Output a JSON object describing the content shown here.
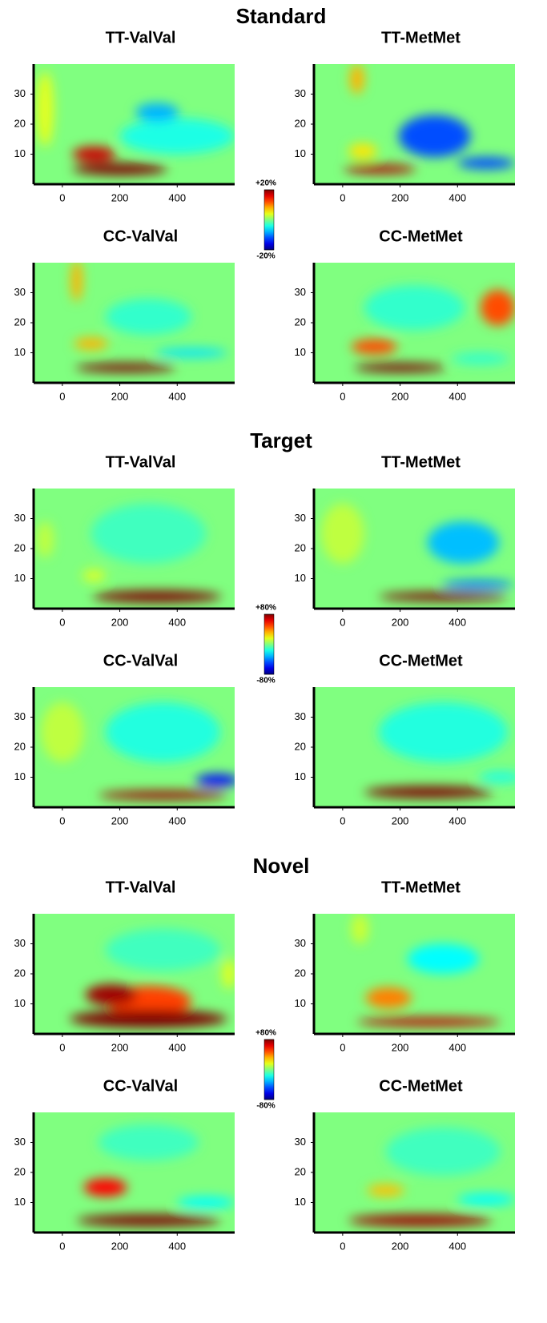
{
  "figure": {
    "xlim": [
      -100,
      600
    ],
    "ylim": [
      0,
      40
    ],
    "xticks": [
      0,
      200,
      400
    ],
    "yticks": [
      10,
      20,
      30
    ]
  },
  "sections": [
    {
      "title": "Standard",
      "clim": [
        -20,
        20
      ],
      "cticks": [
        {
          "value": 20,
          "label": "+20%"
        },
        {
          "value": -20,
          "label": "-20%"
        }
      ],
      "panels": [
        {
          "type": "heatmap",
          "title": "TT-ValVal",
          "features": [
            {
              "x": 400,
              "y": 16,
              "xspan": 400,
              "yspan": 12,
              "value": -4
            },
            {
              "x": -60,
              "y": 25,
              "xspan": 60,
              "yspan": 25,
              "value": 4
            },
            {
              "x": 330,
              "y": 24,
              "xspan": 150,
              "yspan": 6,
              "value": -8
            },
            {
              "x": 110,
              "y": 10,
              "xspan": 150,
              "yspan": 5,
              "value": 17
            },
            {
              "x": 200,
              "y": 5,
              "xspan": 330,
              "yspan": 4,
              "value": 20
            }
          ]
        },
        {
          "type": "heatmap",
          "title": "TT-MetMet",
          "features": [
            {
              "x": 320,
              "y": 16,
              "xspan": 250,
              "yspan": 14,
              "value": -12
            },
            {
              "x": 500,
              "y": 7,
              "xspan": 200,
              "yspan": 4,
              "value": -12
            },
            {
              "x": 50,
              "y": 35,
              "xspan": 50,
              "yspan": 10,
              "value": 8
            },
            {
              "x": 70,
              "y": 11,
              "xspan": 100,
              "yspan": 5,
              "value": 6
            },
            {
              "x": 130,
              "y": 5,
              "xspan": 250,
              "yspan": 3,
              "value": 18
            }
          ]
        },
        {
          "type": "heatmap",
          "title": "CC-ValVal",
          "features": [
            {
              "x": 300,
              "y": 22,
              "xspan": 300,
              "yspan": 12,
              "value": -3
            },
            {
              "x": 450,
              "y": 10,
              "xspan": 250,
              "yspan": 3,
              "value": -6
            },
            {
              "x": 50,
              "y": 34,
              "xspan": 40,
              "yspan": 14,
              "value": 8
            },
            {
              "x": 100,
              "y": 13,
              "xspan": 120,
              "yspan": 4,
              "value": 8
            },
            {
              "x": 220,
              "y": 5,
              "xspan": 350,
              "yspan": 3,
              "value": 20
            }
          ]
        },
        {
          "type": "heatmap",
          "title": "CC-MetMet",
          "features": [
            {
              "x": 250,
              "y": 25,
              "xspan": 350,
              "yspan": 15,
              "value": -3
            },
            {
              "x": 480,
              "y": 8,
              "xspan": 200,
              "yspan": 4,
              "value": -3
            },
            {
              "x": 540,
              "y": 25,
              "xspan": 120,
              "yspan": 12,
              "value": 12
            },
            {
              "x": 110,
              "y": 12,
              "xspan": 160,
              "yspan": 5,
              "value": 12
            },
            {
              "x": 200,
              "y": 5,
              "xspan": 320,
              "yspan": 3,
              "value": 20
            }
          ]
        }
      ]
    },
    {
      "title": "Target",
      "clim": [
        -80,
        80
      ],
      "cticks": [
        {
          "value": 80,
          "label": "+80%"
        },
        {
          "value": -80,
          "label": "-80%"
        }
      ],
      "panels": [
        {
          "type": "heatmap",
          "title": "TT-ValVal",
          "features": [
            {
              "x": 300,
              "y": 25,
              "xspan": 400,
              "yspan": 20,
              "value": -10
            },
            {
              "x": -60,
              "y": 23,
              "xspan": 60,
              "yspan": 12,
              "value": 10
            },
            {
              "x": 110,
              "y": 11,
              "xspan": 80,
              "yspan": 4,
              "value": 15
            },
            {
              "x": 330,
              "y": 4,
              "xspan": 450,
              "yspan": 4,
              "value": 80
            }
          ]
        },
        {
          "type": "heatmap",
          "title": "TT-MetMet",
          "features": [
            {
              "x": 0,
              "y": 25,
              "xspan": 150,
              "yspan": 20,
              "value": 10
            },
            {
              "x": 420,
              "y": 22,
              "xspan": 250,
              "yspan": 14,
              "value": -30
            },
            {
              "x": 470,
              "y": 8,
              "xspan": 250,
              "yspan": 3,
              "value": -40
            },
            {
              "x": 350,
              "y": 4,
              "xspan": 450,
              "yspan": 3,
              "value": 80
            }
          ]
        },
        {
          "type": "heatmap",
          "title": "CC-ValVal",
          "features": [
            {
              "x": 350,
              "y": 25,
              "xspan": 400,
              "yspan": 20,
              "value": -15
            },
            {
              "x": 0,
              "y": 25,
              "xspan": 150,
              "yspan": 20,
              "value": 10
            },
            {
              "x": 540,
              "y": 9,
              "xspan": 150,
              "yspan": 4,
              "value": -60
            },
            {
              "x": 350,
              "y": 4,
              "xspan": 450,
              "yspan": 3,
              "value": 75
            }
          ]
        },
        {
          "type": "heatmap",
          "title": "CC-MetMet",
          "features": [
            {
              "x": 350,
              "y": 25,
              "xspan": 450,
              "yspan": 20,
              "value": -15
            },
            {
              "x": 550,
              "y": 10,
              "xspan": 150,
              "yspan": 4,
              "value": -15
            },
            {
              "x": 300,
              "y": 5,
              "xspan": 450,
              "yspan": 4,
              "value": 80
            }
          ]
        }
      ]
    },
    {
      "title": "Novel",
      "clim": [
        -80,
        80
      ],
      "cticks": [
        {
          "value": 80,
          "label": "+80%"
        },
        {
          "value": -80,
          "label": "-80%"
        }
      ],
      "panels": [
        {
          "type": "heatmap",
          "title": "TT-ValVal",
          "features": [
            {
              "x": 350,
              "y": 28,
              "xspan": 400,
              "yspan": 14,
              "value": -10
            },
            {
              "x": 580,
              "y": 20,
              "xspan": 50,
              "yspan": 10,
              "value": 15
            },
            {
              "x": 300,
              "y": 11,
              "xspan": 300,
              "yspan": 10,
              "value": 50
            },
            {
              "x": 170,
              "y": 13,
              "xspan": 180,
              "yspan": 7,
              "value": 75
            },
            {
              "x": 300,
              "y": 5,
              "xspan": 550,
              "yspan": 6,
              "value": 80
            }
          ]
        },
        {
          "type": "heatmap",
          "title": "TT-MetMet",
          "features": [
            {
              "x": 350,
              "y": 25,
              "xspan": 250,
              "yspan": 10,
              "value": -20
            },
            {
              "x": 60,
              "y": 35,
              "xspan": 60,
              "yspan": 10,
              "value": 12
            },
            {
              "x": 160,
              "y": 12,
              "xspan": 160,
              "yspan": 7,
              "value": 40
            },
            {
              "x": 300,
              "y": 4,
              "xspan": 500,
              "yspan": 3,
              "value": 70
            }
          ]
        },
        {
          "type": "heatmap",
          "title": "CC-ValVal",
          "features": [
            {
              "x": 300,
              "y": 30,
              "xspan": 350,
              "yspan": 12,
              "value": -10
            },
            {
              "x": 500,
              "y": 10,
              "xspan": 200,
              "yspan": 4,
              "value": -20
            },
            {
              "x": 150,
              "y": 15,
              "xspan": 150,
              "yspan": 6,
              "value": 60
            },
            {
              "x": 300,
              "y": 4,
              "xspan": 500,
              "yspan": 4,
              "value": 80
            }
          ]
        },
        {
          "type": "heatmap",
          "title": "CC-MetMet",
          "features": [
            {
              "x": 350,
              "y": 27,
              "xspan": 400,
              "yspan": 16,
              "value": -10
            },
            {
              "x": 500,
              "y": 11,
              "xspan": 200,
              "yspan": 4,
              "value": -20
            },
            {
              "x": 150,
              "y": 14,
              "xspan": 130,
              "yspan": 4,
              "value": 30
            },
            {
              "x": 270,
              "y": 4,
              "xspan": 500,
              "yspan": 4,
              "value": 75
            }
          ]
        }
      ]
    }
  ]
}
